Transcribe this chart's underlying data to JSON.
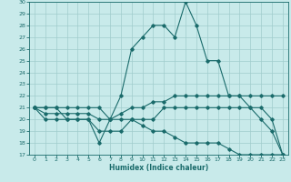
{
  "title": "",
  "xlabel": "Humidex (Indice chaleur)",
  "ylabel": "",
  "bg_color": "#c8eaea",
  "grid_color": "#a0cccc",
  "line_color": "#1a6b6b",
  "xlim": [
    -0.5,
    23.5
  ],
  "ylim": [
    17,
    30
  ],
  "yticks": [
    17,
    18,
    19,
    20,
    21,
    22,
    23,
    24,
    25,
    26,
    27,
    28,
    29,
    30
  ],
  "xticks": [
    0,
    1,
    2,
    3,
    4,
    5,
    6,
    7,
    8,
    9,
    10,
    11,
    12,
    13,
    14,
    15,
    16,
    17,
    18,
    19,
    20,
    21,
    22,
    23
  ],
  "series": [
    {
      "x": [
        0,
        1,
        2,
        3,
        4,
        5,
        6,
        7,
        8,
        9,
        10,
        11,
        12,
        13,
        14,
        15,
        16,
        17,
        18,
        19,
        20,
        21,
        22,
        23
      ],
      "y": [
        21,
        21,
        21,
        20,
        20,
        20,
        18,
        20,
        22,
        26,
        27,
        28,
        28,
        27,
        30,
        28,
        25,
        25,
        22,
        22,
        21,
        20,
        19,
        17
      ]
    },
    {
      "x": [
        0,
        1,
        2,
        3,
        4,
        5,
        6,
        7,
        8,
        9,
        10,
        11,
        12,
        13,
        14,
        15,
        16,
        17,
        18,
        19,
        20,
        21,
        22,
        23
      ],
      "y": [
        21,
        20.5,
        20.5,
        20.5,
        20.5,
        20.5,
        20,
        20,
        20.5,
        21,
        21,
        21.5,
        21.5,
        22,
        22,
        22,
        22,
        22,
        22,
        22,
        22,
        22,
        22,
        22
      ]
    },
    {
      "x": [
        0,
        1,
        2,
        3,
        4,
        5,
        6,
        7,
        8,
        9,
        10,
        11,
        12,
        13,
        14,
        15,
        16,
        17,
        18,
        19,
        20,
        21,
        22,
        23
      ],
      "y": [
        21,
        20,
        20,
        20,
        20,
        20,
        19,
        19,
        19,
        20,
        20,
        20,
        21,
        21,
        21,
        21,
        21,
        21,
        21,
        21,
        21,
        21,
        20,
        17
      ]
    },
    {
      "x": [
        0,
        1,
        2,
        3,
        4,
        5,
        6,
        7,
        8,
        9,
        10,
        11,
        12,
        13,
        14,
        15,
        16,
        17,
        18,
        19,
        20,
        21,
        22,
        23
      ],
      "y": [
        21,
        21,
        21,
        21,
        21,
        21,
        21,
        20,
        20,
        20,
        19.5,
        19,
        19,
        18.5,
        18,
        18,
        18,
        18,
        17.5,
        17,
        17,
        17,
        17,
        17
      ]
    }
  ]
}
